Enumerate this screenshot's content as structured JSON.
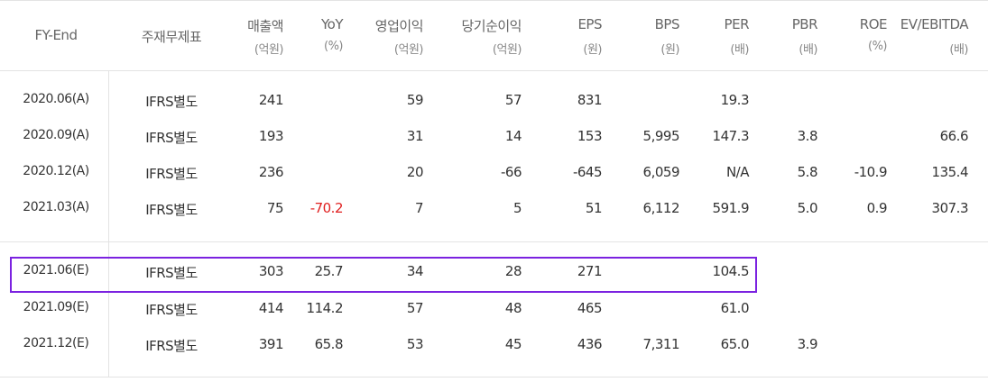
{
  "table": {
    "columns": [
      {
        "name": "FY-End"
      },
      {
        "name": "주재무제표"
      },
      {
        "name": "매출액",
        "unit": "(억원)"
      },
      {
        "name": "YoY",
        "unit": "(%)"
      },
      {
        "name": "영업이익",
        "unit": "(억원)"
      },
      {
        "name": "당기순이익",
        "unit": "(억원)"
      },
      {
        "name": "EPS",
        "unit": "(원)"
      },
      {
        "name": "BPS",
        "unit": "(원)"
      },
      {
        "name": "PER",
        "unit": "(배)"
      },
      {
        "name": "PBR",
        "unit": "(배)"
      },
      {
        "name": "ROE",
        "unit": "(%)"
      },
      {
        "name": "EV/EBITDA",
        "unit": "(배)"
      }
    ],
    "groups": [
      [
        [
          "2020.06(A)",
          "IFRS별도",
          "241",
          null,
          "59",
          "57",
          "831",
          null,
          "19.3",
          null,
          null,
          null
        ],
        [
          "2020.09(A)",
          "IFRS별도",
          "193",
          null,
          "31",
          "14",
          "153",
          "5,995",
          "147.3",
          "3.8",
          null,
          "66.6"
        ],
        [
          "2020.12(A)",
          "IFRS별도",
          "236",
          null,
          "20",
          "-66",
          "-645",
          "6,059",
          "N/A",
          "5.8",
          "-10.9",
          "135.4"
        ],
        [
          "2021.03(A)",
          "IFRS별도",
          "75",
          "-70.2",
          "7",
          "5",
          "51",
          "6,112",
          "591.9",
          "5.0",
          "0.9",
          "307.3"
        ]
      ],
      [
        [
          "2021.06(E)",
          "IFRS별도",
          "303",
          "25.7",
          "34",
          "28",
          "271",
          null,
          "104.5",
          null,
          null,
          null
        ],
        [
          "2021.09(E)",
          "IFRS별도",
          "414",
          "114.2",
          "57",
          "48",
          "465",
          null,
          "61.0",
          null,
          null,
          null
        ],
        [
          "2021.12(E)",
          "IFRS별도",
          "391",
          "65.8",
          "53",
          "45",
          "436",
          "7,311",
          "65.0",
          "3.9",
          null,
          null
        ]
      ]
    ]
  }
}
